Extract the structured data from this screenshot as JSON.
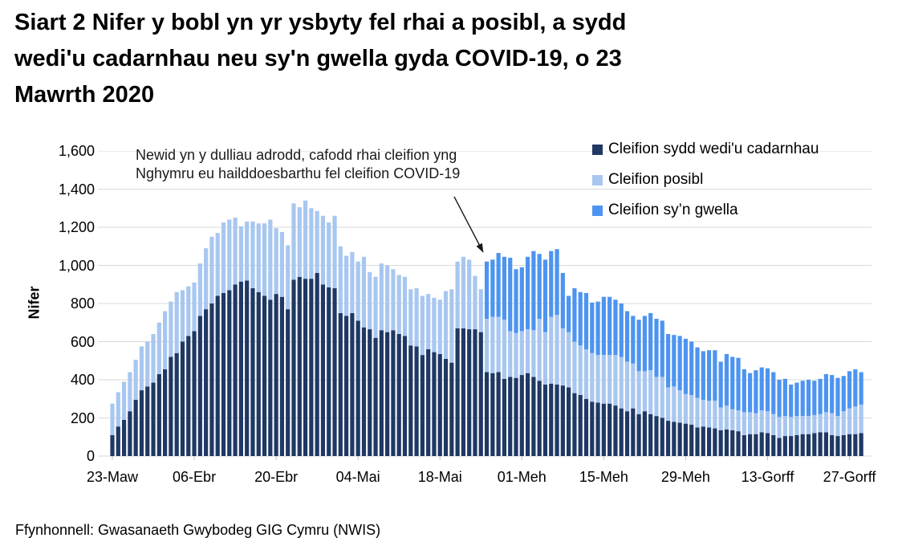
{
  "page": {
    "title_lines": [
      "Siart 2 Nifer y bobl yn yr ysbyty fel rhai a posibl, a sydd",
      "wedi'u cadarnhau neu sy'n gwella gyda COVID-19, o 23",
      "Mawrth 2020"
    ],
    "source": "Ffynhonnell: Gwasanaeth Gwybodeg GIG Cymru (NWIS)"
  },
  "annotation": {
    "line1": "Newid yn y dulliau adrodd, cafodd rhai cleifion yng",
    "line2": "Nghymru eu hailddoesbarthu fel cleifion COVID-19"
  },
  "colors": {
    "confirmed": "#1F3864",
    "possible": "#A8C7F0",
    "recovering": "#4D94F0",
    "gridline": "#D9D9D9",
    "tick": "#BFBFBF",
    "arrow": "#1A1A1A"
  },
  "chart_data": {
    "type": "bar",
    "stacked": true,
    "title": "Siart 2 Nifer y bobl yn yr ysbyty fel rhai a posibl, a sydd wedi'u cadarnhau neu sy'n gwella gyda COVID-19, o 23 Mawrth 2020",
    "xlabel": "",
    "ylabel": "Nifer",
    "ylim": [
      0,
      1600
    ],
    "ytick_step": 200,
    "grid": true,
    "legend_position": "top-right",
    "x_tick_labels": [
      "23-Maw",
      "06-Ebr",
      "20-Ebr",
      "04-Mai",
      "18-Mai",
      "01-Meh",
      "15-Meh",
      "29-Meh",
      "13-Gorff",
      "27-Gorff"
    ],
    "x_tick_day_indices": [
      0,
      14,
      28,
      42,
      56,
      70,
      84,
      98,
      112,
      126
    ],
    "dates": [
      "23-Maw",
      "24-Maw",
      "25-Maw",
      "26-Maw",
      "27-Maw",
      "28-Maw",
      "29-Maw",
      "30-Maw",
      "31-Maw",
      "01-Ebr",
      "02-Ebr",
      "03-Ebr",
      "04-Ebr",
      "05-Ebr",
      "06-Ebr",
      "07-Ebr",
      "08-Ebr",
      "09-Ebr",
      "10-Ebr",
      "11-Ebr",
      "12-Ebr",
      "13-Ebr",
      "14-Ebr",
      "15-Ebr",
      "16-Ebr",
      "17-Ebr",
      "18-Ebr",
      "19-Ebr",
      "20-Ebr",
      "21-Ebr",
      "22-Ebr",
      "23-Ebr",
      "24-Ebr",
      "25-Ebr",
      "26-Ebr",
      "27-Ebr",
      "28-Ebr",
      "29-Ebr",
      "30-Ebr",
      "01-Mai",
      "02-Mai",
      "03-Mai",
      "04-Mai",
      "05-Mai",
      "06-Mai",
      "07-Mai",
      "08-Mai",
      "09-Mai",
      "10-Mai",
      "11-Mai",
      "12-Mai",
      "13-Mai",
      "14-Mai",
      "15-Mai",
      "16-Mai",
      "17-Mai",
      "18-Mai",
      "19-Mai",
      "20-Mai",
      "21-Mai",
      "22-Mai",
      "23-Mai",
      "24-Mai",
      "25-Mai",
      "26-Mai",
      "27-Mai",
      "28-Mai",
      "29-Mai",
      "30-Mai",
      "31-Mai",
      "01-Meh",
      "02-Meh",
      "03-Meh",
      "04-Meh",
      "05-Meh",
      "06-Meh",
      "07-Meh",
      "08-Meh",
      "09-Meh",
      "10-Meh",
      "11-Meh",
      "12-Meh",
      "13-Meh",
      "14-Meh",
      "15-Meh",
      "16-Meh",
      "17-Meh",
      "18-Meh",
      "19-Meh",
      "20-Meh",
      "21-Meh",
      "22-Meh",
      "23-Meh",
      "24-Meh",
      "25-Meh",
      "26-Meh",
      "27-Meh",
      "28-Meh",
      "29-Meh",
      "30-Meh",
      "01-Gorff",
      "02-Gorff",
      "03-Gorff",
      "04-Gorff",
      "05-Gorff",
      "06-Gorff",
      "07-Gorff",
      "08-Gorff",
      "09-Gorff",
      "10-Gorff",
      "11-Gorff",
      "12-Gorff",
      "13-Gorff",
      "14-Gorff",
      "15-Gorff",
      "16-Gorff",
      "17-Gorff",
      "18-Gorff",
      "19-Gorff",
      "20-Gorff",
      "21-Gorff",
      "22-Gorff",
      "23-Gorff",
      "24-Gorff",
      "25-Gorff",
      "26-Gorff",
      "27-Gorff",
      "28-Gorff",
      "29-Gorff"
    ],
    "series": [
      {
        "name": "Cleifion sydd wedi'u cadarnhau",
        "color": "#1F3864",
        "values": [
          110,
          155,
          190,
          235,
          295,
          345,
          365,
          385,
          430,
          455,
          520,
          540,
          600,
          630,
          655,
          735,
          770,
          800,
          840,
          855,
          870,
          900,
          915,
          920,
          880,
          860,
          840,
          820,
          850,
          835,
          770,
          925,
          940,
          930,
          930,
          960,
          900,
          885,
          880,
          750,
          735,
          750,
          710,
          675,
          665,
          620,
          660,
          650,
          660,
          640,
          630,
          580,
          575,
          530,
          560,
          545,
          535,
          510,
          490,
          670,
          670,
          665,
          665,
          650,
          440,
          435,
          440,
          405,
          415,
          410,
          425,
          435,
          415,
          395,
          375,
          380,
          375,
          370,
          360,
          330,
          320,
          300,
          285,
          280,
          275,
          275,
          265,
          250,
          235,
          250,
          220,
          235,
          220,
          210,
          200,
          185,
          180,
          175,
          170,
          165,
          150,
          155,
          150,
          145,
          135,
          140,
          135,
          130,
          110,
          115,
          115,
          125,
          120,
          110,
          95,
          105,
          105,
          110,
          115,
          115,
          120,
          125,
          125,
          110,
          105,
          110,
          115,
          115,
          120
        ]
      },
      {
        "name": "Cleifion posibl",
        "color": "#A8C7F0",
        "values": [
          165,
          180,
          200,
          205,
          210,
          230,
          235,
          255,
          270,
          305,
          290,
          320,
          270,
          260,
          255,
          275,
          320,
          350,
          330,
          370,
          370,
          350,
          290,
          310,
          350,
          360,
          380,
          420,
          345,
          340,
          335,
          400,
          365,
          410,
          370,
          325,
          360,
          340,
          380,
          350,
          315,
          320,
          310,
          370,
          300,
          320,
          350,
          350,
          320,
          310,
          310,
          295,
          305,
          310,
          290,
          285,
          285,
          355,
          385,
          350,
          375,
          365,
          280,
          225,
          280,
          295,
          290,
          310,
          240,
          235,
          230,
          230,
          245,
          325,
          275,
          350,
          365,
          300,
          290,
          270,
          260,
          260,
          255,
          250,
          255,
          255,
          265,
          270,
          260,
          235,
          225,
          210,
          230,
          205,
          215,
          175,
          185,
          170,
          155,
          155,
          155,
          140,
          140,
          145,
          120,
          125,
          110,
          110,
          120,
          115,
          110,
          115,
          115,
          110,
          110,
          105,
          100,
          100,
          95,
          95,
          95,
          95,
          105,
          115,
          105,
          125,
          135,
          145,
          150
        ]
      },
      {
        "name": "Cleifion sy’n gwella",
        "color": "#4D94F0",
        "values": [
          0,
          0,
          0,
          0,
          0,
          0,
          0,
          0,
          0,
          0,
          0,
          0,
          0,
          0,
          0,
          0,
          0,
          0,
          0,
          0,
          0,
          0,
          0,
          0,
          0,
          0,
          0,
          0,
          0,
          0,
          0,
          0,
          0,
          0,
          0,
          0,
          0,
          0,
          0,
          0,
          0,
          0,
          0,
          0,
          0,
          0,
          0,
          0,
          0,
          0,
          0,
          0,
          0,
          0,
          0,
          0,
          0,
          0,
          0,
          0,
          0,
          0,
          0,
          0,
          300,
          300,
          335,
          330,
          385,
          335,
          335,
          380,
          415,
          340,
          380,
          345,
          345,
          290,
          190,
          280,
          280,
          295,
          265,
          280,
          305,
          305,
          290,
          280,
          265,
          250,
          270,
          290,
          300,
          305,
          295,
          280,
          270,
          285,
          290,
          280,
          265,
          255,
          265,
          265,
          240,
          270,
          275,
          275,
          225,
          205,
          225,
          225,
          225,
          220,
          195,
          195,
          170,
          175,
          185,
          190,
          180,
          185,
          200,
          200,
          200,
          185,
          195,
          195,
          170
        ]
      }
    ]
  }
}
